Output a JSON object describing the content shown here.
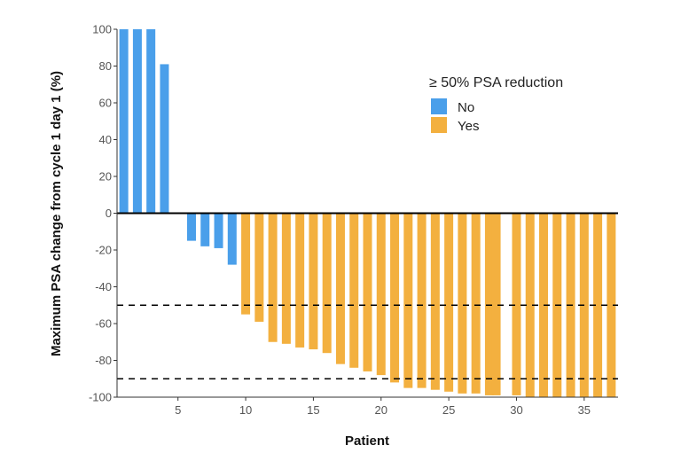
{
  "chart_data": {
    "type": "bar",
    "title": "",
    "xlabel": "Patient",
    "ylabel": "Maximum PSA change from cycle 1 day 1 (%)",
    "xlim": [
      0.5,
      37.5
    ],
    "ylim": [
      -100,
      100
    ],
    "x_ticks": [
      5,
      10,
      15,
      20,
      25,
      30,
      35
    ],
    "y_ticks": [
      100,
      80,
      60,
      40,
      20,
      0,
      -20,
      -40,
      -60,
      -80,
      -100
    ],
    "grid": false,
    "reference_lines": [
      -50,
      -90
    ],
    "legend": {
      "title": "≥ 50% PSA reduction",
      "placement": "top-right",
      "entries": [
        {
          "label": "No",
          "color": "#4a9fea"
        },
        {
          "label": "Yes",
          "color": "#f3b03f"
        }
      ]
    },
    "patients": [
      1,
      2,
      3,
      4,
      5,
      6,
      7,
      8,
      9,
      10,
      11,
      12,
      13,
      14,
      15,
      16,
      17,
      18,
      19,
      20,
      21,
      22,
      23,
      24,
      25,
      26,
      27,
      28,
      28.5,
      30,
      31,
      32,
      33,
      34,
      35,
      36,
      37
    ],
    "values": [
      100,
      100,
      100,
      81,
      null,
      -15,
      -18,
      -19,
      -28,
      -55,
      -59,
      -70,
      -71,
      -73,
      -74,
      -76,
      -82,
      -84,
      -86,
      -88,
      -92,
      -95,
      -95,
      -96,
      -97,
      -98,
      -98,
      -99,
      -99,
      -99,
      -100,
      -100,
      -100,
      -100,
      -100,
      -100,
      -100
    ],
    "response_group": [
      "No",
      "No",
      "No",
      "No",
      null,
      "No",
      "No",
      "No",
      "No",
      "Yes",
      "Yes",
      "Yes",
      "Yes",
      "Yes",
      "Yes",
      "Yes",
      "Yes",
      "Yes",
      "Yes",
      "Yes",
      "Yes",
      "Yes",
      "Yes",
      "Yes",
      "Yes",
      "Yes",
      "Yes",
      "Yes",
      "Yes",
      "Yes",
      "Yes",
      "Yes",
      "Yes",
      "Yes",
      "Yes",
      "Yes",
      "Yes"
    ]
  }
}
